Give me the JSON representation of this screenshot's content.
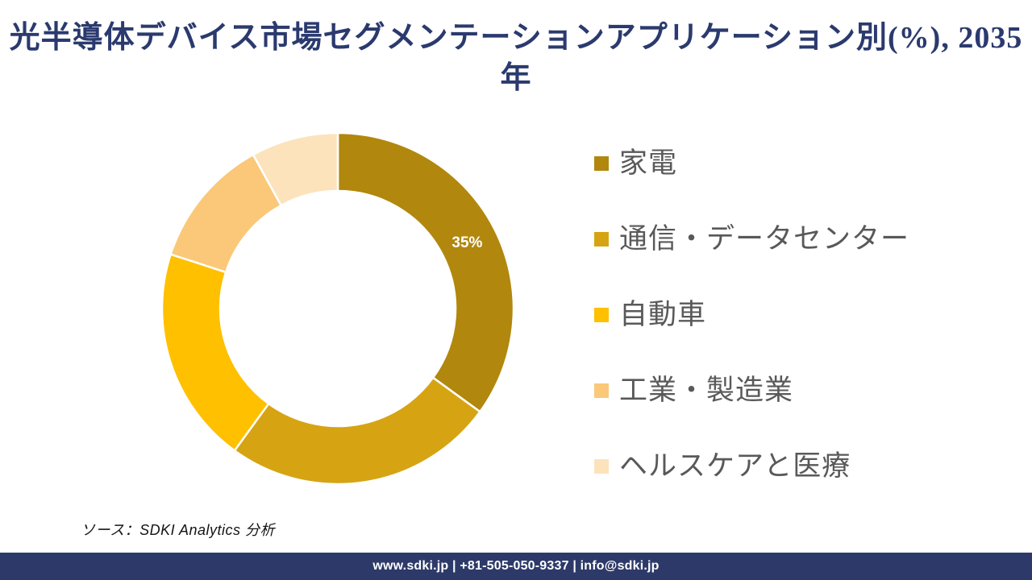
{
  "title": {
    "text": "光半導体デバイス市場セグメンテーションアプリケーション別(%), 2035年",
    "lines": [
      "光半導体デバイス市場セグメンテーションアプリケーション別(%), 2035",
      "年"
    ]
  },
  "chart_data": {
    "type": "pie",
    "subtype": "doughnut",
    "title": "光半導体デバイス市場セグメンテーションアプリケーション別(%), 2035年",
    "unit": "%",
    "start_angle_deg": 0,
    "direction": "clockwise",
    "donut_hole_ratio": 0.67,
    "legend_position": "right",
    "unlabeled_values_estimated_from_arc": true,
    "segments": [
      {
        "label": "家電",
        "value": 35,
        "color": "#B1870D",
        "data_label": "35%"
      },
      {
        "label": "通信・データセンター",
        "value": 25,
        "color": "#D6A413",
        "data_label": ""
      },
      {
        "label": "自動車",
        "value": 20,
        "color": "#FFC000",
        "data_label": ""
      },
      {
        "label": "工業・製造業",
        "value": 12,
        "color": "#FAC878",
        "data_label": ""
      },
      {
        "label": "ヘルスケアと医療",
        "value": 8,
        "color": "#FCE3BC",
        "data_label": ""
      }
    ]
  },
  "source": {
    "text": "ソース：SDKI Analytics  分析"
  },
  "footer": {
    "text": "www.sdki.jp | +81-505-050-9337 | info@sdki.jp",
    "background": "#2D3A69"
  },
  "colors": {
    "title_text": "#2B3A6E",
    "legend_text": "#595959",
    "data_label_text": "#FFFFFF",
    "separator": "#FFFFFF",
    "background": "#FFFFFF"
  }
}
